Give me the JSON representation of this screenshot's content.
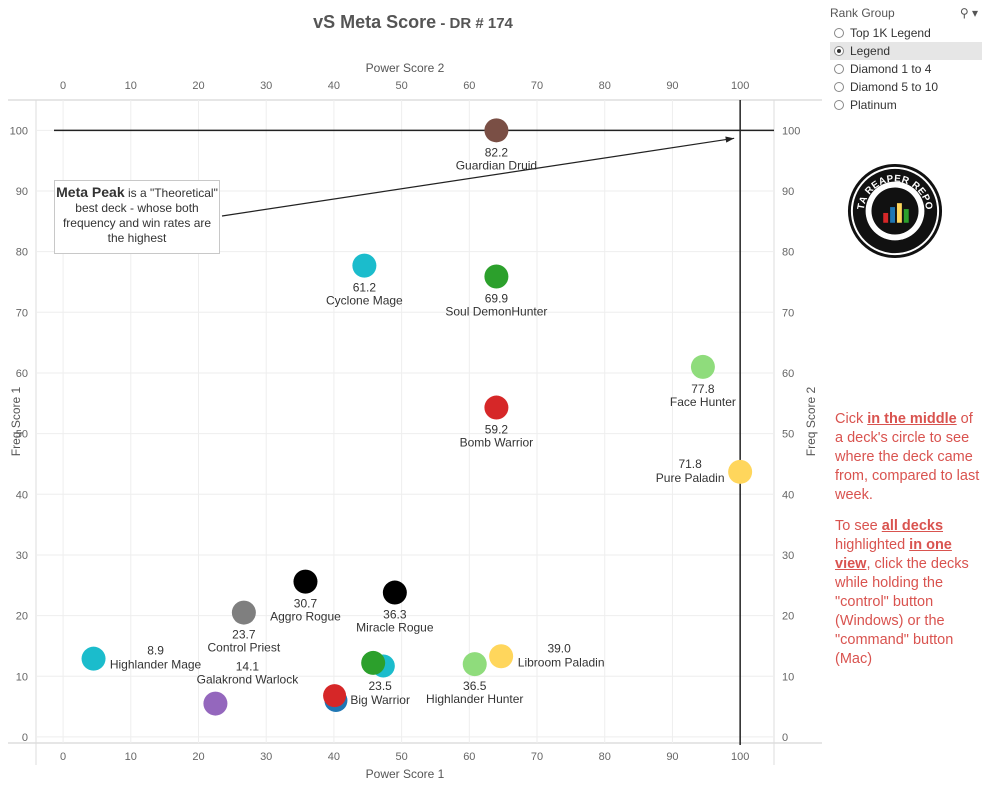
{
  "title": {
    "main": "vS Meta Score",
    "sep": " - ",
    "sub": "DR # 174"
  },
  "rank_group": {
    "label": "Rank Group",
    "options": [
      {
        "label": "Top 1K Legend",
        "selected": false
      },
      {
        "label": "Legend",
        "selected": true
      },
      {
        "label": "Diamond 1 to 4",
        "selected": false
      },
      {
        "label": "Diamond 5 to 10",
        "selected": false
      },
      {
        "label": "Platinum",
        "selected": false
      }
    ]
  },
  "callout": {
    "bold": "Meta Peak",
    "rest": " is a \"Theoretical\" best deck - whose both frequency and win rates are the highest"
  },
  "note": {
    "p1_pre": "Cick ",
    "p1_em": "in the middle",
    "p1_post": " of a deck's circle to see where the deck came from, compared to last week.",
    "p2_pre": "To see ",
    "p2_em1": "all decks ",
    "p2_mid": " highlighted ",
    "p2_em2": "in one view",
    "p2_post": ", click the decks while holding the \"control\" button (Windows) or the \"command\" button (Mac)"
  },
  "logo": {
    "text": "DATA REAPER REPORT",
    "icon": "data-reaper-logo"
  },
  "chart_data": {
    "type": "scatter",
    "title": "vS Meta Score - DR # 174",
    "xlabel_bottom": "Power Score 1",
    "xlabel_top": "Power Score 2",
    "ylabel_left": "Freq Score 1",
    "ylabel_right": "Freq Score 2",
    "xlim": [
      -4,
      105
    ],
    "ylim": [
      -1,
      105
    ],
    "xticks": [
      0,
      10,
      20,
      30,
      40,
      50,
      60,
      70,
      80,
      90,
      100
    ],
    "yticks": [
      0,
      10,
      20,
      30,
      40,
      50,
      60,
      70,
      80,
      90,
      100
    ],
    "reference_lines": {
      "x": 100,
      "y": 100
    },
    "points": [
      {
        "name": "Guardian Druid",
        "score": "82.2",
        "x": 64,
        "y": 100,
        "color": "#7a4f45",
        "label_pos": "below"
      },
      {
        "name": "Cyclone Mage",
        "score": "61.2",
        "x": 44.5,
        "y": 77.7,
        "color": "#1bbccc",
        "label_pos": "below"
      },
      {
        "name": "Soul DemonHunter",
        "score": "69.9",
        "x": 64,
        "y": 75.9,
        "color": "#2ca02c",
        "label_pos": "below"
      },
      {
        "name": "Face Hunter",
        "score": "77.8",
        "x": 94.5,
        "y": 61,
        "color": "#8fdc7c",
        "label_pos": "below"
      },
      {
        "name": "Bomb Warrior",
        "score": "59.2",
        "x": 64,
        "y": 54.3,
        "color": "#d62728",
        "label_pos": "below"
      },
      {
        "name": "Pure Paladin",
        "score": "71.8",
        "x": 100,
        "y": 43.7,
        "color": "#ffd65c",
        "label_pos": "left"
      },
      {
        "name": "Aggro Rogue",
        "score": "30.7",
        "x": 35.8,
        "y": 25.6,
        "color": "#000000",
        "label_pos": "below"
      },
      {
        "name": "Miracle Rogue",
        "score": "36.3",
        "x": 49,
        "y": 23.8,
        "color": "#000000",
        "label_pos": "below"
      },
      {
        "name": "Control Priest",
        "score": "23.7",
        "x": 26.7,
        "y": 20.5,
        "color": "#7f7f7f",
        "label_pos": "below"
      },
      {
        "name": "Highlander Mage",
        "score": "8.9",
        "x": 4.5,
        "y": 12.9,
        "color": "#1bbccc",
        "label_pos": "right"
      },
      {
        "name": "Big Warrior",
        "score": "23.5",
        "x": 45.8,
        "y": 12.2,
        "color": "#2ca02c",
        "label_pos": "below"
      },
      {
        "name": "Highlander Hunter",
        "score": "36.5",
        "x": 60.8,
        "y": 12,
        "color": "#8fdc7c",
        "label_pos": "below"
      },
      {
        "name": "Libroom Paladin",
        "score": "39.0",
        "x": 64.7,
        "y": 13.3,
        "color": "#ffd65c",
        "label_pos": "right"
      },
      {
        "name": "Galakrond Warlock",
        "score": "14.1",
        "x": 22.5,
        "y": 5.5,
        "color": "#9467bd",
        "label_pos": "above"
      }
    ],
    "extra_points": [
      {
        "x": 47.3,
        "y": 11.7,
        "color": "#1bbccc"
      },
      {
        "x": 40.3,
        "y": 6,
        "color": "#1f77b4"
      },
      {
        "x": 40.1,
        "y": 6.8,
        "color": "#d62728"
      }
    ]
  }
}
